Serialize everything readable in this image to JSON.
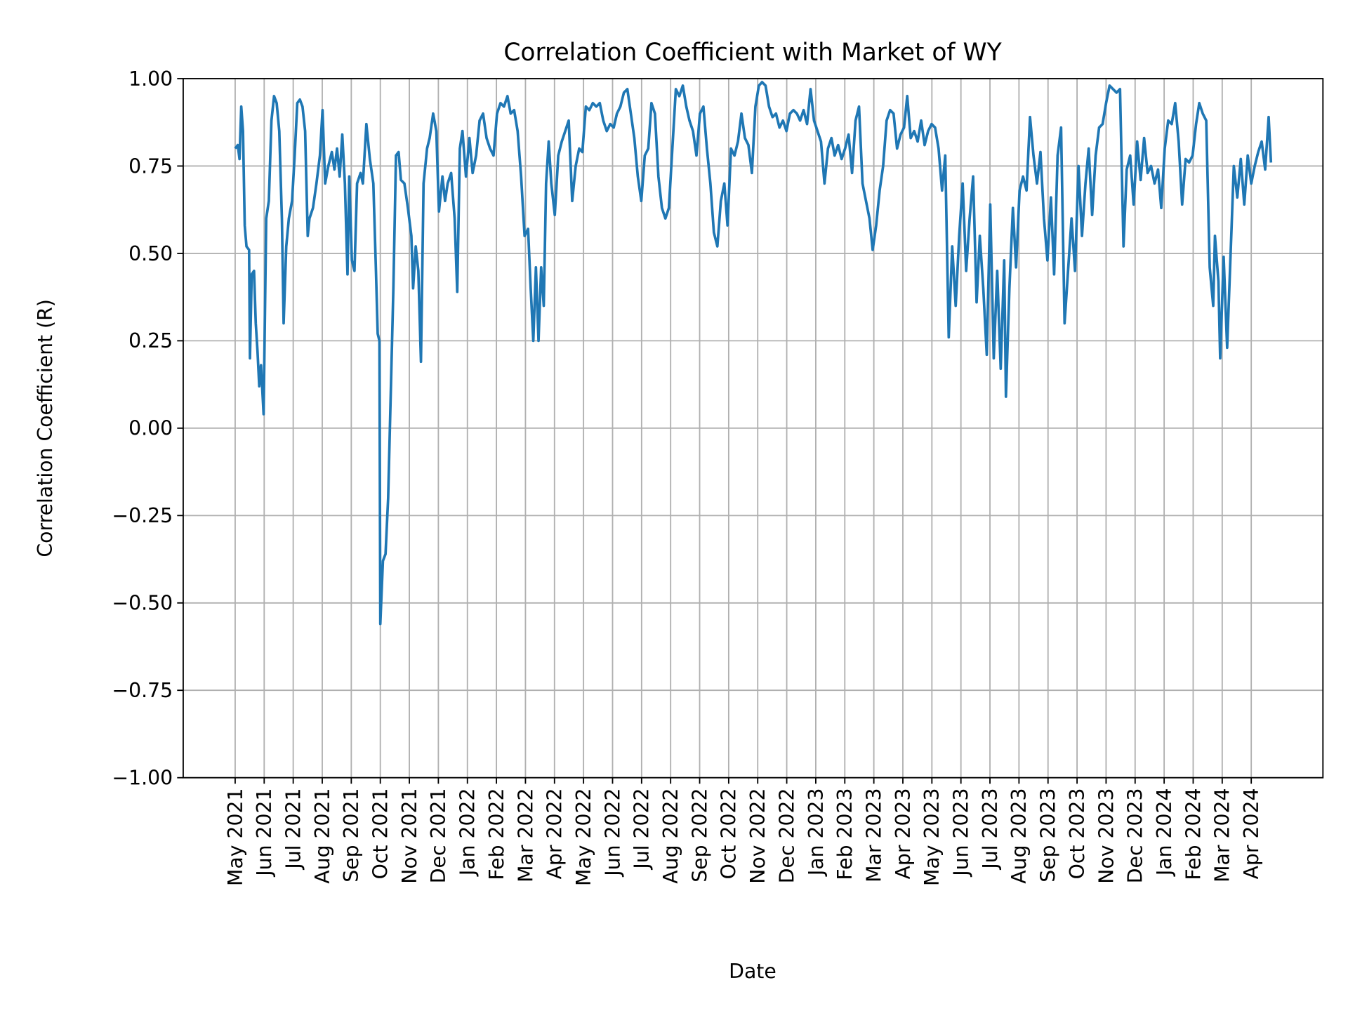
{
  "chart_data": {
    "type": "line",
    "title": "Correlation Coefficient with Market of WY",
    "x_label": "Date",
    "y_label": "Correlation Coefficient (R)",
    "color": "#1f77b4",
    "grid": true,
    "xlim": [
      -1.79,
      37.47
    ],
    "ylim": [
      -1,
      1
    ],
    "xticks": [
      {
        "value": 0,
        "label": "May 2021"
      },
      {
        "value": 1,
        "label": "Jun 2021"
      },
      {
        "value": 2,
        "label": "Jul 2021"
      },
      {
        "value": 3,
        "label": "Aug 2021"
      },
      {
        "value": 4,
        "label": "Sep 2021"
      },
      {
        "value": 5,
        "label": "Oct 2021"
      },
      {
        "value": 6,
        "label": "Nov 2021"
      },
      {
        "value": 7,
        "label": "Dec 2021"
      },
      {
        "value": 8,
        "label": "Jan 2022"
      },
      {
        "value": 9,
        "label": "Feb 2022"
      },
      {
        "value": 10,
        "label": "Mar 2022"
      },
      {
        "value": 11,
        "label": "Apr 2022"
      },
      {
        "value": 12,
        "label": "May 2022"
      },
      {
        "value": 13,
        "label": "Jun 2022"
      },
      {
        "value": 14,
        "label": "Jul 2022"
      },
      {
        "value": 15,
        "label": "Aug 2022"
      },
      {
        "value": 16,
        "label": "Sep 2022"
      },
      {
        "value": 17,
        "label": "Oct 2022"
      },
      {
        "value": 18,
        "label": "Nov 2022"
      },
      {
        "value": 19,
        "label": "Dec 2022"
      },
      {
        "value": 20,
        "label": "Jan 2023"
      },
      {
        "value": 21,
        "label": "Feb 2023"
      },
      {
        "value": 22,
        "label": "Mar 2023"
      },
      {
        "value": 23,
        "label": "Apr 2023"
      },
      {
        "value": 24,
        "label": "May 2023"
      },
      {
        "value": 25,
        "label": "Jun 2023"
      },
      {
        "value": 26,
        "label": "Jul 2023"
      },
      {
        "value": 27,
        "label": "Aug 2023"
      },
      {
        "value": 28,
        "label": "Sep 2023"
      },
      {
        "value": 29,
        "label": "Oct 2023"
      },
      {
        "value": 30,
        "label": "Nov 2023"
      },
      {
        "value": 31,
        "label": "Dec 2023"
      },
      {
        "value": 32,
        "label": "Jan 2024"
      },
      {
        "value": 33,
        "label": "Feb 2024"
      },
      {
        "value": 34,
        "label": "Mar 2024"
      },
      {
        "value": 35,
        "label": "Apr 2024"
      }
    ],
    "yticks": [
      {
        "value": -1,
        "label": "−1.00"
      },
      {
        "value": -0.75,
        "label": "−0.75"
      },
      {
        "value": -0.5,
        "label": "−0.50"
      },
      {
        "value": -0.25,
        "label": "−0.25"
      },
      {
        "value": 0,
        "label": "0.00"
      },
      {
        "value": 0.25,
        "label": "0.25"
      },
      {
        "value": 0.5,
        "label": "0.50"
      },
      {
        "value": 0.75,
        "label": "0.75"
      },
      {
        "value": 1,
        "label": "1.00"
      }
    ],
    "x": [
      0,
      0.09,
      0.15,
      0.21,
      0.27,
      0.33,
      0.39,
      0.48,
      0.51,
      0.57,
      0.65,
      0.71,
      0.77,
      0.83,
      0.89,
      0.98,
      1.07,
      1.16,
      1.25,
      1.34,
      1.43,
      1.52,
      1.61,
      1.67,
      1.76,
      1.85,
      1.96,
      2.05,
      2.14,
      2.23,
      2.32,
      2.41,
      2.5,
      2.56,
      2.68,
      2.8,
      2.92,
      3.01,
      3.1,
      3.21,
      3.33,
      3.42,
      3.51,
      3.6,
      3.69,
      3.78,
      3.87,
      3.93,
      4.02,
      4.11,
      4.2,
      4.32,
      4.4,
      4.52,
      4.64,
      4.76,
      4.85,
      4.91,
      4.97,
      5,
      5.09,
      5.18,
      5.27,
      5.36,
      5.45,
      5.54,
      5.63,
      5.71,
      5.83,
      5.95,
      6.07,
      6.13,
      6.22,
      6.31,
      6.4,
      6.49,
      6.61,
      6.7,
      6.82,
      6.93,
      7.02,
      7.14,
      7.23,
      7.32,
      7.44,
      7.56,
      7.65,
      7.74,
      7.83,
      7.95,
      8.07,
      8.18,
      8.3,
      8.42,
      8.54,
      8.66,
      8.78,
      8.9,
      9.02,
      9.14,
      9.26,
      9.38,
      9.49,
      9.61,
      9.73,
      9.85,
      9.97,
      10.09,
      10.18,
      10.27,
      10.36,
      10.45,
      10.54,
      10.63,
      10.71,
      10.8,
      10.89,
      11.01,
      11.13,
      11.25,
      11.37,
      11.49,
      11.61,
      11.73,
      11.85,
      11.96,
      12.08,
      12.2,
      12.32,
      12.44,
      12.56,
      12.68,
      12.8,
      12.92,
      13.04,
      13.15,
      13.27,
      13.39,
      13.51,
      13.63,
      13.75,
      13.87,
      13.99,
      14.11,
      14.23,
      14.34,
      14.46,
      14.58,
      14.7,
      14.82,
      14.94,
      15.06,
      15.18,
      15.3,
      15.42,
      15.54,
      15.65,
      15.77,
      15.89,
      16.01,
      16.13,
      16.25,
      16.37,
      16.49,
      16.61,
      16.73,
      16.85,
      16.96,
      17.08,
      17.2,
      17.32,
      17.44,
      17.56,
      17.68,
      17.8,
      17.92,
      18.04,
      18.15,
      18.27,
      18.39,
      18.51,
      18.63,
      18.75,
      18.87,
      18.99,
      19.11,
      19.23,
      19.35,
      19.46,
      19.58,
      19.7,
      19.82,
      19.94,
      20.06,
      20.18,
      20.3,
      20.42,
      20.54,
      20.65,
      20.77,
      20.89,
      21.01,
      21.13,
      21.25,
      21.37,
      21.49,
      21.61,
      21.73,
      21.85,
      21.96,
      22.08,
      22.2,
      22.32,
      22.44,
      22.56,
      22.68,
      22.8,
      22.92,
      23.04,
      23.15,
      23.27,
      23.39,
      23.51,
      23.63,
      23.75,
      23.87,
      23.99,
      24.11,
      24.23,
      24.35,
      24.46,
      24.58,
      24.7,
      24.82,
      24.94,
      25.06,
      25.18,
      25.3,
      25.42,
      25.54,
      25.65,
      25.77,
      25.89,
      26.01,
      26.13,
      26.25,
      26.37,
      26.49,
      26.55,
      26.67,
      26.79,
      26.9,
      27.02,
      27.14,
      27.26,
      27.38,
      27.5,
      27.62,
      27.74,
      27.86,
      27.98,
      28.1,
      28.21,
      28.33,
      28.45,
      28.57,
      28.69,
      28.81,
      28.93,
      29.05,
      29.17,
      29.29,
      29.4,
      29.52,
      29.64,
      29.76,
      29.88,
      30,
      30.12,
      30.24,
      30.36,
      30.48,
      30.6,
      30.71,
      30.83,
      30.95,
      31.07,
      31.19,
      31.31,
      31.43,
      31.55,
      31.67,
      31.79,
      31.9,
      32.02,
      32.14,
      32.26,
      32.38,
      32.5,
      32.62,
      32.74,
      32.86,
      32.98,
      33.1,
      33.21,
      33.33,
      33.45,
      33.57,
      33.69,
      33.75,
      33.87,
      33.93,
      34.05,
      34.17,
      34.29,
      34.4,
      34.52,
      34.64,
      34.76,
      34.88,
      35,
      35.12,
      35.24,
      35.36,
      35.48,
      35.6,
      35.68
    ],
    "values": [
      0.8,
      0.81,
      0.77,
      0.92,
      0.85,
      0.58,
      0.52,
      0.51,
      0.2,
      0.44,
      0.45,
      0.3,
      0.22,
      0.12,
      0.18,
      0.04,
      0.6,
      0.65,
      0.88,
      0.95,
      0.93,
      0.85,
      0.6,
      0.3,
      0.52,
      0.6,
      0.65,
      0.78,
      0.93,
      0.94,
      0.92,
      0.85,
      0.55,
      0.6,
      0.63,
      0.7,
      0.78,
      0.91,
      0.7,
      0.75,
      0.79,
      0.74,
      0.8,
      0.72,
      0.84,
      0.7,
      0.44,
      0.72,
      0.48,
      0.45,
      0.7,
      0.73,
      0.7,
      0.87,
      0.77,
      0.7,
      0.45,
      0.27,
      0.25,
      -0.56,
      -0.38,
      -0.36,
      -0.2,
      0.1,
      0.4,
      0.78,
      0.79,
      0.71,
      0.7,
      0.63,
      0.55,
      0.4,
      0.52,
      0.45,
      0.19,
      0.7,
      0.8,
      0.83,
      0.9,
      0.85,
      0.62,
      0.72,
      0.65,
      0.7,
      0.73,
      0.6,
      0.39,
      0.8,
      0.85,
      0.72,
      0.83,
      0.73,
      0.78,
      0.88,
      0.9,
      0.83,
      0.8,
      0.78,
      0.9,
      0.93,
      0.92,
      0.95,
      0.9,
      0.91,
      0.85,
      0.72,
      0.55,
      0.57,
      0.4,
      0.25,
      0.46,
      0.25,
      0.46,
      0.35,
      0.7,
      0.82,
      0.7,
      0.61,
      0.78,
      0.82,
      0.85,
      0.88,
      0.65,
      0.75,
      0.8,
      0.79,
      0.92,
      0.91,
      0.93,
      0.92,
      0.93,
      0.88,
      0.85,
      0.87,
      0.86,
      0.9,
      0.92,
      0.96,
      0.97,
      0.9,
      0.83,
      0.72,
      0.65,
      0.78,
      0.8,
      0.93,
      0.9,
      0.72,
      0.63,
      0.6,
      0.63,
      0.8,
      0.97,
      0.95,
      0.98,
      0.92,
      0.88,
      0.85,
      0.78,
      0.9,
      0.92,
      0.8,
      0.7,
      0.56,
      0.52,
      0.65,
      0.7,
      0.58,
      0.8,
      0.78,
      0.82,
      0.9,
      0.83,
      0.81,
      0.73,
      0.92,
      0.98,
      0.99,
      0.98,
      0.92,
      0.89,
      0.9,
      0.86,
      0.88,
      0.85,
      0.9,
      0.91,
      0.9,
      0.88,
      0.91,
      0.87,
      0.97,
      0.88,
      0.85,
      0.82,
      0.7,
      0.8,
      0.83,
      0.78,
      0.81,
      0.77,
      0.8,
      0.84,
      0.73,
      0.88,
      0.92,
      0.7,
      0.65,
      0.6,
      0.51,
      0.58,
      0.68,
      0.75,
      0.88,
      0.91,
      0.9,
      0.8,
      0.84,
      0.86,
      0.95,
      0.83,
      0.85,
      0.82,
      0.88,
      0.81,
      0.85,
      0.87,
      0.86,
      0.8,
      0.68,
      0.78,
      0.26,
      0.52,
      0.35,
      0.55,
      0.7,
      0.45,
      0.6,
      0.72,
      0.36,
      0.55,
      0.4,
      0.21,
      0.64,
      0.2,
      0.45,
      0.17,
      0.48,
      0.09,
      0.4,
      0.63,
      0.46,
      0.68,
      0.72,
      0.68,
      0.89,
      0.78,
      0.7,
      0.79,
      0.6,
      0.48,
      0.66,
      0.44,
      0.78,
      0.86,
      0.3,
      0.45,
      0.6,
      0.45,
      0.75,
      0.55,
      0.7,
      0.8,
      0.61,
      0.78,
      0.86,
      0.87,
      0.93,
      0.98,
      0.97,
      0.96,
      0.97,
      0.52,
      0.74,
      0.78,
      0.64,
      0.82,
      0.71,
      0.83,
      0.73,
      0.75,
      0.7,
      0.74,
      0.63,
      0.8,
      0.88,
      0.87,
      0.93,
      0.82,
      0.64,
      0.77,
      0.76,
      0.78,
      0.87,
      0.93,
      0.9,
      0.88,
      0.46,
      0.35,
      0.55,
      0.42,
      0.2,
      0.49,
      0.23,
      0.5,
      0.75,
      0.66,
      0.77,
      0.64,
      0.78,
      0.7,
      0.75,
      0.79,
      0.82,
      0.74,
      0.89,
      0.76
    ]
  }
}
